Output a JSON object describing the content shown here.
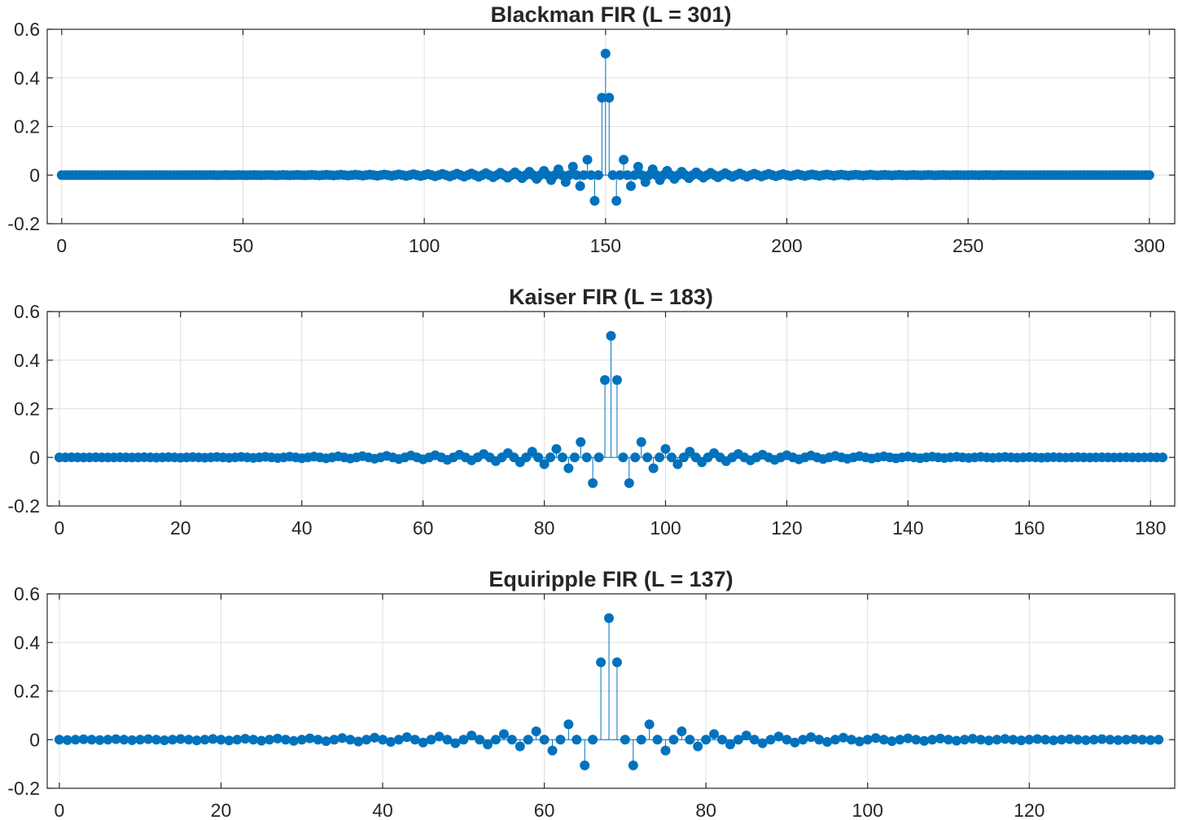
{
  "chart_data": [
    {
      "type": "stem",
      "title": "Blackman FIR (L = 301)",
      "length": 301,
      "center": 150,
      "cutoff": 0.5,
      "window": "blackman",
      "xlim": [
        -4,
        307
      ],
      "ylim": [
        -0.2,
        0.6
      ],
      "xticks": [
        0,
        50,
        100,
        150,
        200,
        250,
        300
      ],
      "yticks": [
        -0.2,
        0,
        0.2,
        0.4,
        0.6
      ],
      "yticklabels": [
        "-0.2",
        "0",
        "0.2",
        "0.4",
        "0.6"
      ],
      "grid": true,
      "color": "#0072BD"
    },
    {
      "type": "stem",
      "title": "Kaiser FIR (L = 183)",
      "length": 183,
      "center": 91,
      "cutoff": 0.5,
      "window": "kaiser",
      "xlim": [
        -2,
        184
      ],
      "ylim": [
        -0.2,
        0.6
      ],
      "xticks": [
        0,
        20,
        40,
        60,
        80,
        100,
        120,
        140,
        160,
        180
      ],
      "yticks": [
        -0.2,
        0,
        0.2,
        0.4,
        0.6
      ],
      "yticklabels": [
        "-0.2",
        "0",
        "0.2",
        "0.4",
        "0.6"
      ],
      "grid": true,
      "color": "#0072BD"
    },
    {
      "type": "stem",
      "title": "Equiripple FIR (L = 137)",
      "length": 137,
      "center": 68,
      "cutoff": 0.5,
      "window": "equiripple",
      "xlim": [
        -1.5,
        138
      ],
      "ylim": [
        -0.2,
        0.6
      ],
      "xticks": [
        0,
        20,
        40,
        60,
        80,
        100,
        120
      ],
      "yticks": [
        -0.2,
        0,
        0.2,
        0.4,
        0.6
      ],
      "yticklabels": [
        "-0.2",
        "0",
        "0.2",
        "0.4",
        "0.6"
      ],
      "grid": true,
      "color": "#0072BD"
    }
  ]
}
